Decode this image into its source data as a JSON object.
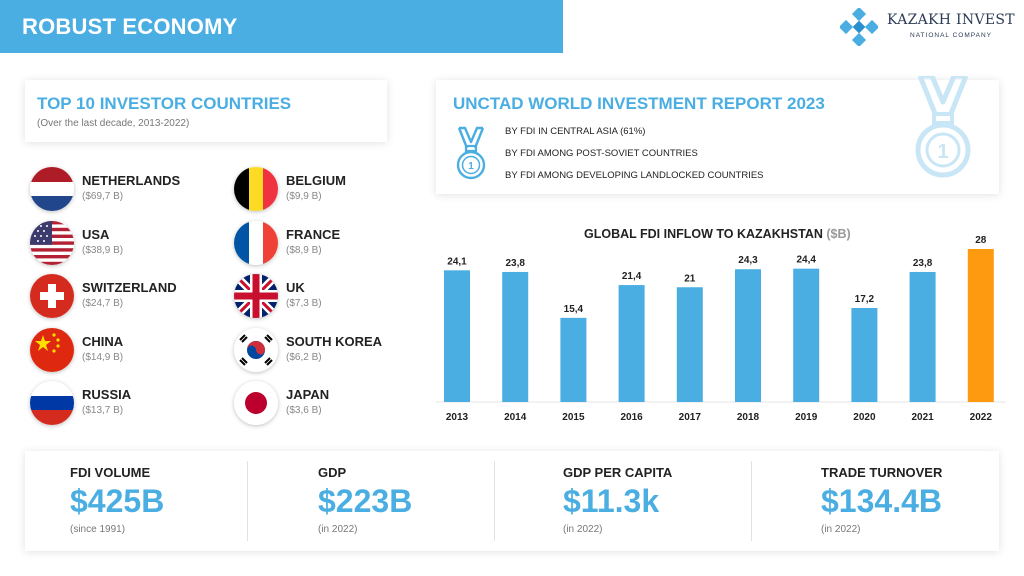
{
  "header": {
    "title": "ROBUST ECONOMY"
  },
  "logo": {
    "name": "KAZAKH INVEST",
    "subtitle": "NATIONAL COMPANY"
  },
  "investors": {
    "title": "TOP 10 INVESTOR COUNTRIES",
    "subtitle": "(Over the last decade, 2013-2022)",
    "countries": [
      {
        "name": "NETHERLANDS",
        "value": "($69,7 B)"
      },
      {
        "name": "BELGIUM",
        "value": "($9,9 B)"
      },
      {
        "name": "USA",
        "value": "($38,9 B)"
      },
      {
        "name": "FRANCE",
        "value": "($8,9 B)"
      },
      {
        "name": "SWITZERLAND",
        "value": "($24,7 B)"
      },
      {
        "name": "UK",
        "value": "($7,3 B)"
      },
      {
        "name": "CHINA",
        "value": "($14,9 B)"
      },
      {
        "name": "SOUTH KOREA",
        "value": "($6,2 B)"
      },
      {
        "name": "RUSSIA",
        "value": "($13,7 B)"
      },
      {
        "name": "JAPAN",
        "value": "($3,6 B)"
      }
    ]
  },
  "unctad": {
    "title": "UNCTAD WORLD INVESTMENT REPORT 2023",
    "medal_number": "1",
    "rankings": [
      "BY FDI IN CENTRAL ASIA (61%)",
      "BY FDI AMONG POST-SOVIET COUNTRIES",
      "BY FDI AMONG DEVELOPING LANDLOCKED COUNTRIES"
    ]
  },
  "chart_data": {
    "type": "bar",
    "title": "GLOBAL FDI INFLOW TO KAZAKHSTAN",
    "unit": "($B)",
    "categories": [
      "2013",
      "2014",
      "2015",
      "2016",
      "2017",
      "2018",
      "2019",
      "2020",
      "2021",
      "2022"
    ],
    "values": [
      24.1,
      23.8,
      15.4,
      21.4,
      21,
      24.3,
      24.4,
      17.2,
      23.8,
      28
    ],
    "value_labels": [
      "24,1",
      "23,8",
      "15,4",
      "21,4",
      "21",
      "24,3",
      "24,4",
      "17,2",
      "23,8",
      "28"
    ],
    "highlight_index": 9,
    "colors": {
      "bar": "#4aaee2",
      "highlight": "#fd9a10"
    },
    "xlabel": "",
    "ylabel": "",
    "ylim": [
      0,
      28
    ]
  },
  "stats": [
    {
      "label": "FDI VOLUME",
      "value": "$425B",
      "note": "(since 1991)"
    },
    {
      "label": "GDP",
      "value": "$223B",
      "note": "(in 2022)"
    },
    {
      "label": "GDP PER CAPITA",
      "value": "$11.3k",
      "note": "(in 2022)"
    },
    {
      "label": "TRADE TURNOVER",
      "value": "$134.4B",
      "note": "(in 2022)"
    }
  ],
  "colors": {
    "accent": "#4aaee2",
    "highlight": "#fd9a10"
  }
}
